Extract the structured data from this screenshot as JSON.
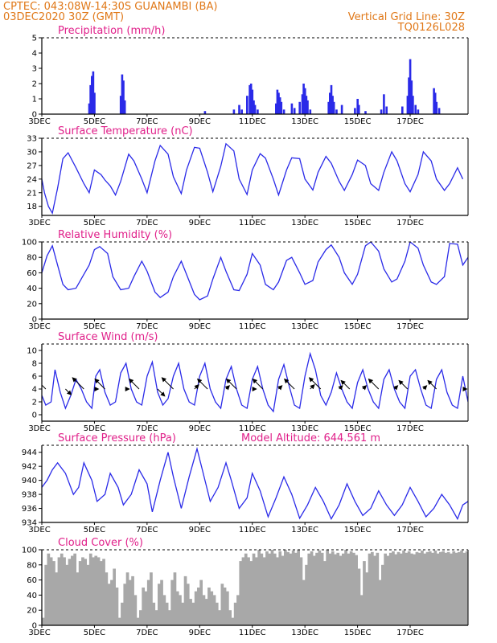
{
  "header": {
    "line1_left": "CPTEC:   043:08W-14:30S   GUANAMBI (BA)",
    "line2_left": "03DEC2020 30Z (GMT)",
    "line2_right": "Vertical Grid Line: 30Z",
    "line3_right": "TQ0126L028"
  },
  "colors": {
    "header": "#e07818",
    "title": "#e0208a",
    "line": "#2a2ae8",
    "bar": "#2a2ae8",
    "cloud": "#a8a8a8",
    "arrow": "#000000"
  },
  "x_labels": [
    "3DEC",
    "5DEC",
    "7DEC",
    "9DEC",
    "11DEC",
    "13DEC",
    "15DEC",
    "17DEC"
  ],
  "chart_data": [
    {
      "id": "precip",
      "type": "bar",
      "title": "Precipitation (mm/h)",
      "xlim": [
        3,
        19.2
      ],
      "ylim": [
        0,
        5
      ],
      "yticks": [
        0,
        1,
        2,
        3,
        4,
        5
      ],
      "x": [
        4.8,
        4.85,
        4.9,
        4.95,
        5.0,
        6.0,
        6.05,
        6.1,
        6.15,
        9.2,
        10.3,
        10.5,
        10.6,
        10.8,
        10.9,
        10.95,
        11.0,
        11.05,
        11.1,
        11.2,
        11.9,
        11.95,
        12.0,
        12.05,
        12.1,
        12.2,
        12.5,
        12.6,
        12.8,
        12.9,
        12.95,
        13.0,
        13.05,
        13.1,
        13.2,
        13.9,
        13.95,
        14.0,
        14.05,
        14.1,
        14.2,
        14.4,
        14.9,
        15.0,
        15.05,
        15.3,
        15.9,
        16.0,
        16.1,
        16.7,
        16.9,
        16.95,
        17.0,
        17.05,
        17.1,
        17.2,
        17.3,
        17.9,
        17.95,
        18.0,
        18.1
      ],
      "values": [
        0.7,
        1.9,
        2.5,
        2.8,
        1.4,
        1.2,
        2.6,
        2.2,
        0.9,
        0.2,
        0.3,
        0.6,
        0.3,
        1.2,
        1.9,
        2.0,
        1.6,
        0.9,
        0.6,
        0.3,
        0.7,
        1.6,
        1.4,
        1.1,
        0.8,
        0.3,
        0.7,
        0.4,
        0.8,
        1.3,
        2.0,
        1.7,
        1.2,
        0.9,
        0.3,
        0.8,
        1.4,
        1.9,
        1.2,
        0.8,
        0.3,
        0.6,
        0.4,
        1.0,
        0.6,
        0.2,
        0.3,
        1.3,
        0.5,
        0.5,
        1.2,
        2.4,
        3.6,
        2.2,
        1.2,
        0.6,
        0.3,
        1.7,
        1.4,
        0.8,
        0.4
      ]
    },
    {
      "id": "temp",
      "type": "line",
      "title": "Surface Temperature (nC)",
      "xlim": [
        3,
        19.2
      ],
      "ylim": [
        16,
        33
      ],
      "yticks": [
        18,
        21,
        24,
        27,
        30,
        33
      ],
      "x": [
        3.0,
        3.1,
        3.25,
        3.4,
        3.6,
        3.8,
        4.0,
        4.3,
        4.6,
        4.8,
        5.0,
        5.25,
        5.4,
        5.6,
        5.8,
        6.0,
        6.3,
        6.5,
        6.8,
        7.0,
        7.3,
        7.5,
        7.8,
        8.0,
        8.3,
        8.5,
        8.8,
        9.0,
        9.3,
        9.5,
        9.8,
        10.0,
        10.3,
        10.5,
        10.8,
        11.0,
        11.3,
        11.5,
        11.8,
        12.0,
        12.3,
        12.5,
        12.8,
        13.0,
        13.3,
        13.5,
        13.8,
        14.0,
        14.3,
        14.5,
        14.8,
        15.0,
        15.3,
        15.5,
        15.8,
        16.0,
        16.3,
        16.5,
        16.8,
        17.0,
        17.3,
        17.5,
        17.8,
        18.0,
        18.3,
        18.5,
        18.8,
        19.0
      ],
      "values": [
        24.0,
        21.0,
        18.0,
        16.5,
        22.0,
        28.5,
        29.8,
        26.5,
        23.0,
        21.0,
        26.0,
        25.0,
        23.8,
        22.5,
        20.5,
        23.5,
        29.5,
        28.0,
        24.0,
        21.0,
        28.0,
        31.4,
        29.5,
        24.5,
        20.8,
        26.0,
        31.0,
        30.8,
        25.5,
        21.2,
        26.8,
        31.8,
        30.2,
        24.0,
        20.6,
        26.0,
        29.6,
        28.6,
        24.0,
        20.5,
        26.0,
        28.7,
        28.5,
        24.0,
        21.6,
        25.5,
        29.0,
        27.5,
        23.5,
        21.5,
        25.0,
        28.2,
        27.0,
        23.0,
        21.5,
        25.5,
        30.0,
        28.0,
        23.0,
        21.2,
        25.0,
        30.0,
        28.0,
        24.0,
        21.5,
        23.0,
        26.5,
        24.0
      ]
    },
    {
      "id": "rh",
      "type": "line",
      "title": "Relative Humidity (%)",
      "xlim": [
        3,
        19.2
      ],
      "ylim": [
        0,
        100
      ],
      "yticks": [
        0,
        20,
        40,
        60,
        80,
        100
      ],
      "x": [
        3.0,
        3.2,
        3.4,
        3.6,
        3.8,
        4.0,
        4.3,
        4.6,
        4.8,
        5.0,
        5.2,
        5.5,
        5.7,
        6.0,
        6.3,
        6.5,
        6.8,
        7.0,
        7.3,
        7.5,
        7.8,
        8.0,
        8.3,
        8.5,
        8.8,
        9.0,
        9.3,
        9.5,
        9.8,
        10.0,
        10.3,
        10.5,
        10.8,
        11.0,
        11.3,
        11.5,
        11.8,
        12.0,
        12.3,
        12.5,
        12.8,
        13.0,
        13.3,
        13.5,
        13.8,
        14.0,
        14.3,
        14.5,
        14.8,
        15.0,
        15.3,
        15.5,
        15.8,
        16.0,
        16.3,
        16.5,
        16.8,
        17.0,
        17.3,
        17.5,
        17.8,
        18.0,
        18.3,
        18.5,
        18.8,
        19.0,
        19.2
      ],
      "values": [
        60.0,
        82.0,
        95.0,
        70.0,
        45.0,
        38.0,
        40.0,
        58.0,
        70.0,
        90.0,
        94.0,
        85.0,
        55.0,
        38.0,
        40.0,
        55.0,
        75.0,
        62.0,
        35.0,
        28.0,
        35.0,
        55.0,
        75.0,
        58.0,
        32.0,
        25.0,
        30.0,
        52.0,
        80.0,
        62.0,
        38.0,
        37.0,
        58.0,
        85.0,
        70.0,
        45.0,
        38.0,
        48.0,
        76.0,
        80.0,
        60.0,
        45.0,
        50.0,
        74.0,
        90.0,
        96.0,
        80.0,
        60.0,
        45.0,
        58.0,
        95.0,
        100.0,
        88.0,
        65.0,
        48.0,
        52.0,
        75.0,
        100.0,
        92.0,
        70.0,
        48.0,
        45.0,
        55.0,
        98.0,
        97.0,
        70.0,
        80.0
      ]
    },
    {
      "id": "wind",
      "type": "line",
      "title": "Surface Wind (m/s)",
      "xlim": [
        3,
        19.2
      ],
      "ylim": [
        -1,
        11
      ],
      "yticks": [
        0,
        2,
        4,
        6,
        8,
        10
      ],
      "x": [
        3.0,
        3.15,
        3.35,
        3.5,
        3.7,
        3.9,
        4.1,
        4.3,
        4.5,
        4.7,
        4.9,
        5.05,
        5.2,
        5.4,
        5.6,
        5.8,
        6.0,
        6.2,
        6.4,
        6.6,
        6.8,
        7.0,
        7.2,
        7.4,
        7.6,
        7.8,
        8.0,
        8.2,
        8.4,
        8.6,
        8.8,
        9.0,
        9.2,
        9.4,
        9.6,
        9.8,
        10.0,
        10.2,
        10.4,
        10.6,
        10.8,
        11.0,
        11.2,
        11.4,
        11.6,
        11.8,
        12.0,
        12.2,
        12.4,
        12.6,
        12.8,
        13.0,
        13.2,
        13.4,
        13.6,
        13.8,
        14.0,
        14.2,
        14.4,
        14.6,
        14.8,
        15.0,
        15.2,
        15.4,
        15.6,
        15.8,
        16.0,
        16.2,
        16.4,
        16.6,
        16.8,
        17.0,
        17.2,
        17.4,
        17.6,
        17.8,
        18.0,
        18.2,
        18.4,
        18.6,
        18.8,
        19.0,
        19.2
      ],
      "values": [
        3.0,
        1.5,
        2.0,
        7.0,
        3.5,
        1.0,
        3.0,
        5.5,
        4.0,
        2.0,
        1.0,
        6.0,
        7.0,
        3.5,
        1.5,
        2.0,
        6.5,
        8.0,
        4.0,
        2.0,
        1.5,
        6.0,
        8.2,
        3.5,
        1.5,
        2.5,
        6.0,
        8.0,
        4.0,
        2.0,
        1.5,
        6.0,
        8.0,
        4.0,
        2.0,
        1.0,
        5.5,
        7.5,
        4.0,
        1.5,
        1.0,
        5.5,
        7.5,
        4.0,
        1.5,
        0.5,
        5.5,
        7.8,
        4.5,
        1.5,
        1.0,
        6.0,
        9.5,
        7.0,
        3.0,
        1.5,
        3.5,
        6.5,
        4.0,
        2.0,
        1.0,
        5.0,
        7.0,
        4.0,
        2.0,
        1.0,
        5.5,
        7.0,
        4.0,
        2.0,
        1.0,
        6.0,
        7.0,
        4.0,
        1.5,
        1.0,
        5.5,
        7.0,
        3.5,
        1.5,
        1.0,
        6.0,
        2.0
      ],
      "arrows": [
        {
          "x": 3.15,
          "dir": 225,
          "len": 3.0
        },
        {
          "x": 3.9,
          "dir": 45,
          "len": 2.0
        },
        {
          "x": 4.6,
          "dir": 225,
          "len": 4.0
        },
        {
          "x": 5.0,
          "dir": 0,
          "len": 1.0
        },
        {
          "x": 5.4,
          "dir": 225,
          "len": 3.5
        },
        {
          "x": 6.2,
          "dir": 0,
          "len": 0.8
        },
        {
          "x": 6.7,
          "dir": 225,
          "len": 3.5
        },
        {
          "x": 7.4,
          "dir": 45,
          "len": 2.5
        },
        {
          "x": 8.0,
          "dir": 225,
          "len": 4.0
        },
        {
          "x": 8.8,
          "dir": 315,
          "len": 1.5
        },
        {
          "x": 9.3,
          "dir": 225,
          "len": 3.5
        },
        {
          "x": 10.0,
          "dir": 315,
          "len": 1.2
        },
        {
          "x": 10.4,
          "dir": 225,
          "len": 3.5
        },
        {
          "x": 11.0,
          "dir": 0,
          "len": 1.0
        },
        {
          "x": 11.4,
          "dir": 225,
          "len": 3.5
        },
        {
          "x": 12.0,
          "dir": 315,
          "len": 1.2
        },
        {
          "x": 12.6,
          "dir": 225,
          "len": 3.5
        },
        {
          "x": 13.2,
          "dir": 315,
          "len": 1.5
        },
        {
          "x": 13.6,
          "dir": 225,
          "len": 4.0
        },
        {
          "x": 14.3,
          "dir": 315,
          "len": 1.2
        },
        {
          "x": 14.7,
          "dir": 225,
          "len": 3.0
        },
        {
          "x": 15.2,
          "dir": 315,
          "len": 1.2
        },
        {
          "x": 15.8,
          "dir": 225,
          "len": 3.5
        },
        {
          "x": 16.4,
          "dir": 315,
          "len": 1.2
        },
        {
          "x": 16.9,
          "dir": 225,
          "len": 3.0
        },
        {
          "x": 17.5,
          "dir": 315,
          "len": 1.2
        },
        {
          "x": 18.0,
          "dir": 225,
          "len": 3.0
        },
        {
          "x": 19.0,
          "dir": 0,
          "len": 1.0
        }
      ]
    },
    {
      "id": "pres",
      "type": "line",
      "title": "Surface Pressure (hPa)",
      "annotation": "Model Altitude: 644.561  m",
      "xlim": [
        3,
        19.2
      ],
      "ylim": [
        934,
        945
      ],
      "yticks": [
        934,
        936,
        938,
        940,
        942,
        944
      ],
      "x": [
        3.0,
        3.2,
        3.4,
        3.6,
        3.9,
        4.2,
        4.4,
        4.6,
        4.9,
        5.1,
        5.4,
        5.6,
        5.9,
        6.1,
        6.4,
        6.7,
        7.0,
        7.2,
        7.5,
        7.8,
        8.0,
        8.3,
        8.6,
        8.9,
        9.1,
        9.4,
        9.7,
        10.0,
        10.2,
        10.5,
        10.8,
        11.0,
        11.3,
        11.6,
        11.9,
        12.2,
        12.5,
        12.8,
        13.1,
        13.4,
        13.7,
        14.0,
        14.3,
        14.6,
        14.9,
        15.2,
        15.5,
        15.8,
        16.1,
        16.4,
        16.7,
        17.0,
        17.3,
        17.6,
        17.9,
        18.2,
        18.5,
        18.8,
        19.0,
        19.2
      ],
      "values": [
        939.0,
        940.0,
        941.5,
        942.5,
        941.0,
        938.0,
        939.0,
        942.5,
        940.0,
        937.0,
        938.0,
        941.0,
        939.0,
        936.5,
        938.0,
        941.5,
        939.5,
        935.5,
        940.0,
        944.0,
        940.5,
        936.0,
        940.5,
        944.5,
        941.5,
        937.0,
        939.0,
        942.5,
        940.0,
        936.0,
        937.5,
        941.0,
        938.5,
        934.8,
        937.5,
        940.5,
        938.0,
        934.6,
        936.5,
        939.0,
        937.0,
        934.5,
        936.5,
        939.5,
        937.0,
        935.0,
        936.0,
        938.5,
        936.5,
        935.0,
        936.5,
        939.0,
        937.0,
        934.8,
        936.0,
        938.0,
        936.5,
        934.5,
        936.5,
        937.0
      ]
    },
    {
      "id": "cloud",
      "type": "bar",
      "title": "Cloud Cover (%)",
      "xlim": [
        3,
        19.2
      ],
      "ylim": [
        0,
        100
      ],
      "yticks": [
        0,
        20,
        40,
        60,
        80,
        100
      ],
      "x": [
        3.0,
        3.1,
        3.2,
        3.3,
        3.4,
        3.5,
        3.6,
        3.7,
        3.8,
        3.9,
        4.0,
        4.1,
        4.2,
        4.3,
        4.4,
        4.5,
        4.6,
        4.7,
        4.8,
        4.9,
        5.0,
        5.1,
        5.2,
        5.3,
        5.4,
        5.5,
        5.6,
        5.7,
        5.8,
        5.9,
        6.0,
        6.1,
        6.2,
        6.3,
        6.4,
        6.5,
        6.6,
        6.7,
        6.8,
        6.9,
        7.0,
        7.1,
        7.2,
        7.3,
        7.4,
        7.5,
        7.6,
        7.7,
        7.8,
        7.9,
        8.0,
        8.1,
        8.2,
        8.3,
        8.4,
        8.5,
        8.6,
        8.7,
        8.8,
        8.9,
        9.0,
        9.1,
        9.2,
        9.3,
        9.4,
        9.5,
        9.6,
        9.7,
        9.8,
        9.9,
        10.0,
        10.1,
        10.2,
        10.3,
        10.4,
        10.5,
        10.6,
        10.7,
        10.8,
        10.9,
        11.0,
        11.1,
        11.2,
        11.3,
        11.4,
        11.5,
        11.6,
        11.7,
        11.8,
        11.9,
        12.0,
        12.1,
        12.2,
        12.3,
        12.4,
        12.5,
        12.6,
        12.7,
        12.8,
        12.9,
        13.0,
        13.1,
        13.2,
        13.3,
        13.4,
        13.5,
        13.6,
        13.7,
        13.8,
        13.9,
        14.0,
        14.1,
        14.2,
        14.3,
        14.4,
        14.5,
        14.6,
        14.7,
        14.8,
        14.9,
        15.0,
        15.1,
        15.2,
        15.3,
        15.4,
        15.5,
        15.6,
        15.7,
        15.8,
        15.9,
        16.0,
        16.1,
        16.2,
        16.3,
        16.4,
        16.5,
        16.6,
        16.7,
        16.8,
        16.9,
        17.0,
        17.1,
        17.2,
        17.3,
        17.4,
        17.5,
        17.6,
        17.7,
        17.8,
        17.9,
        18.0,
        18.1,
        18.2,
        18.3,
        18.4,
        18.5,
        18.6,
        18.7,
        18.8,
        18.9,
        19.0,
        19.1
      ],
      "values": [
        10,
        80,
        95,
        90,
        85,
        70,
        90,
        95,
        90,
        80,
        88,
        92,
        95,
        70,
        85,
        90,
        88,
        80,
        95,
        90,
        92,
        90,
        85,
        88,
        70,
        55,
        60,
        75,
        50,
        10,
        30,
        55,
        70,
        60,
        65,
        40,
        10,
        20,
        50,
        45,
        60,
        70,
        30,
        20,
        55,
        60,
        40,
        30,
        20,
        60,
        70,
        45,
        40,
        30,
        65,
        55,
        35,
        30,
        45,
        50,
        60,
        40,
        35,
        50,
        45,
        40,
        30,
        20,
        55,
        50,
        45,
        20,
        10,
        30,
        40,
        85,
        90,
        95,
        90,
        85,
        95,
        90,
        100,
        95,
        90,
        98,
        95,
        100,
        95,
        90,
        98,
        92,
        100,
        97,
        95,
        99,
        96,
        100,
        90,
        60,
        80,
        95,
        98,
        92,
        96,
        99,
        96,
        85,
        100,
        95,
        98,
        94,
        96,
        92,
        95,
        100,
        95,
        98,
        96,
        93,
        75,
        40,
        85,
        70,
        95,
        97,
        92,
        96,
        60,
        80,
        95,
        92,
        96,
        98,
        94,
        97,
        95,
        99,
        96,
        98,
        95,
        94,
        97,
        96,
        99,
        95,
        97,
        98,
        96,
        99,
        95,
        97,
        98,
        96,
        97,
        95,
        98,
        96,
        97,
        99,
        96,
        98
      ]
    }
  ]
}
